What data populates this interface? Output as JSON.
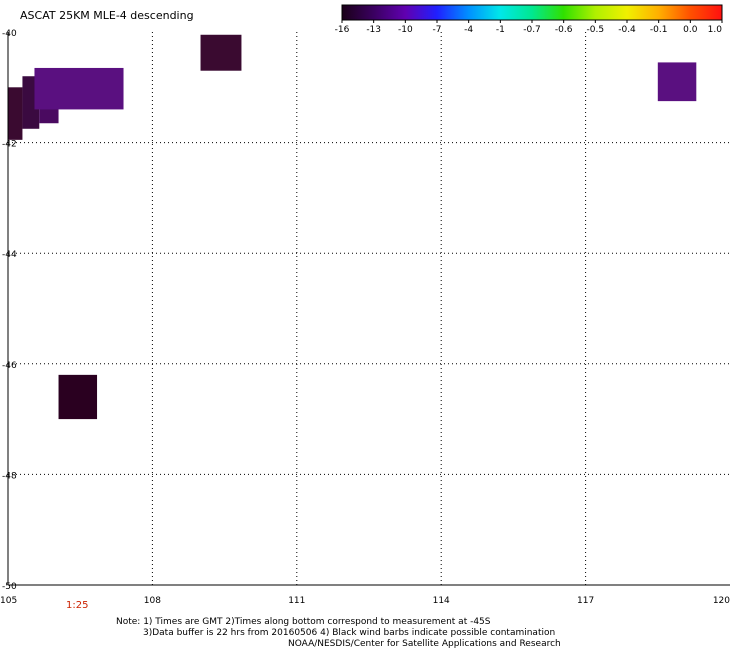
{
  "title": "ASCAT 25KM MLE-4 descending",
  "colorbar": {
    "labels": [
      "-16",
      "-13",
      "-10",
      "-7",
      "-4",
      "-1",
      "-0.7",
      "-0.6",
      "-0.5",
      "-0.4",
      "-0.1",
      "0.0",
      "1.0"
    ],
    "colors": [
      "#1a0018",
      "#3a0060",
      "#6000b0",
      "#2020ff",
      "#0090ff",
      "#00e8e8",
      "#00e890",
      "#30e000",
      "#b0f000",
      "#f0f000",
      "#ffb000",
      "#ff5000",
      "#ff1010"
    ]
  },
  "map": {
    "lat_labels": [
      "-40",
      "-42",
      "-44",
      "-46",
      "-48",
      "-50"
    ],
    "lon_labels": [
      "105",
      "108",
      "111",
      "114",
      "117",
      "120"
    ],
    "lat_range": [
      -50,
      -40
    ],
    "lon_range": [
      105,
      120
    ],
    "cells": [
      {
        "lon0": 105.0,
        "lon1": 105.3,
        "lat0": -41.95,
        "lat1": -41.0,
        "color": "#3a0a30"
      },
      {
        "lon0": 105.3,
        "lon1": 105.65,
        "lat0": -41.75,
        "lat1": -40.8,
        "color": "#3a0a40"
      },
      {
        "lon0": 105.65,
        "lon1": 106.05,
        "lat0": -41.65,
        "lat1": -40.8,
        "color": "#4a0a60"
      },
      {
        "lon0": 105.55,
        "lon1": 107.4,
        "lat0": -41.4,
        "lat1": -40.65,
        "color": "#5a1080"
      },
      {
        "lon0": 109.0,
        "lon1": 109.85,
        "lat0": -40.7,
        "lat1": -40.05,
        "color": "#3a0a30"
      },
      {
        "lon0": 118.5,
        "lon1": 119.3,
        "lat0": -41.25,
        "lat1": -40.55,
        "color": "#5a1080"
      },
      {
        "lon0": 106.05,
        "lon1": 106.85,
        "lat0": -47.0,
        "lat1": -46.2,
        "color": "#2a0020"
      }
    ]
  },
  "time_label": "1:25",
  "notes": [
    "Note: 1) Times are GMT 2)Times along bottom correspond to measurement at -45S",
    "3)Data buffer is 22 hrs from 20160506 4) Black wind barbs indicate possible contamination",
    "NOAA/NESDIS/Center for Satellite Applications and Research"
  ]
}
